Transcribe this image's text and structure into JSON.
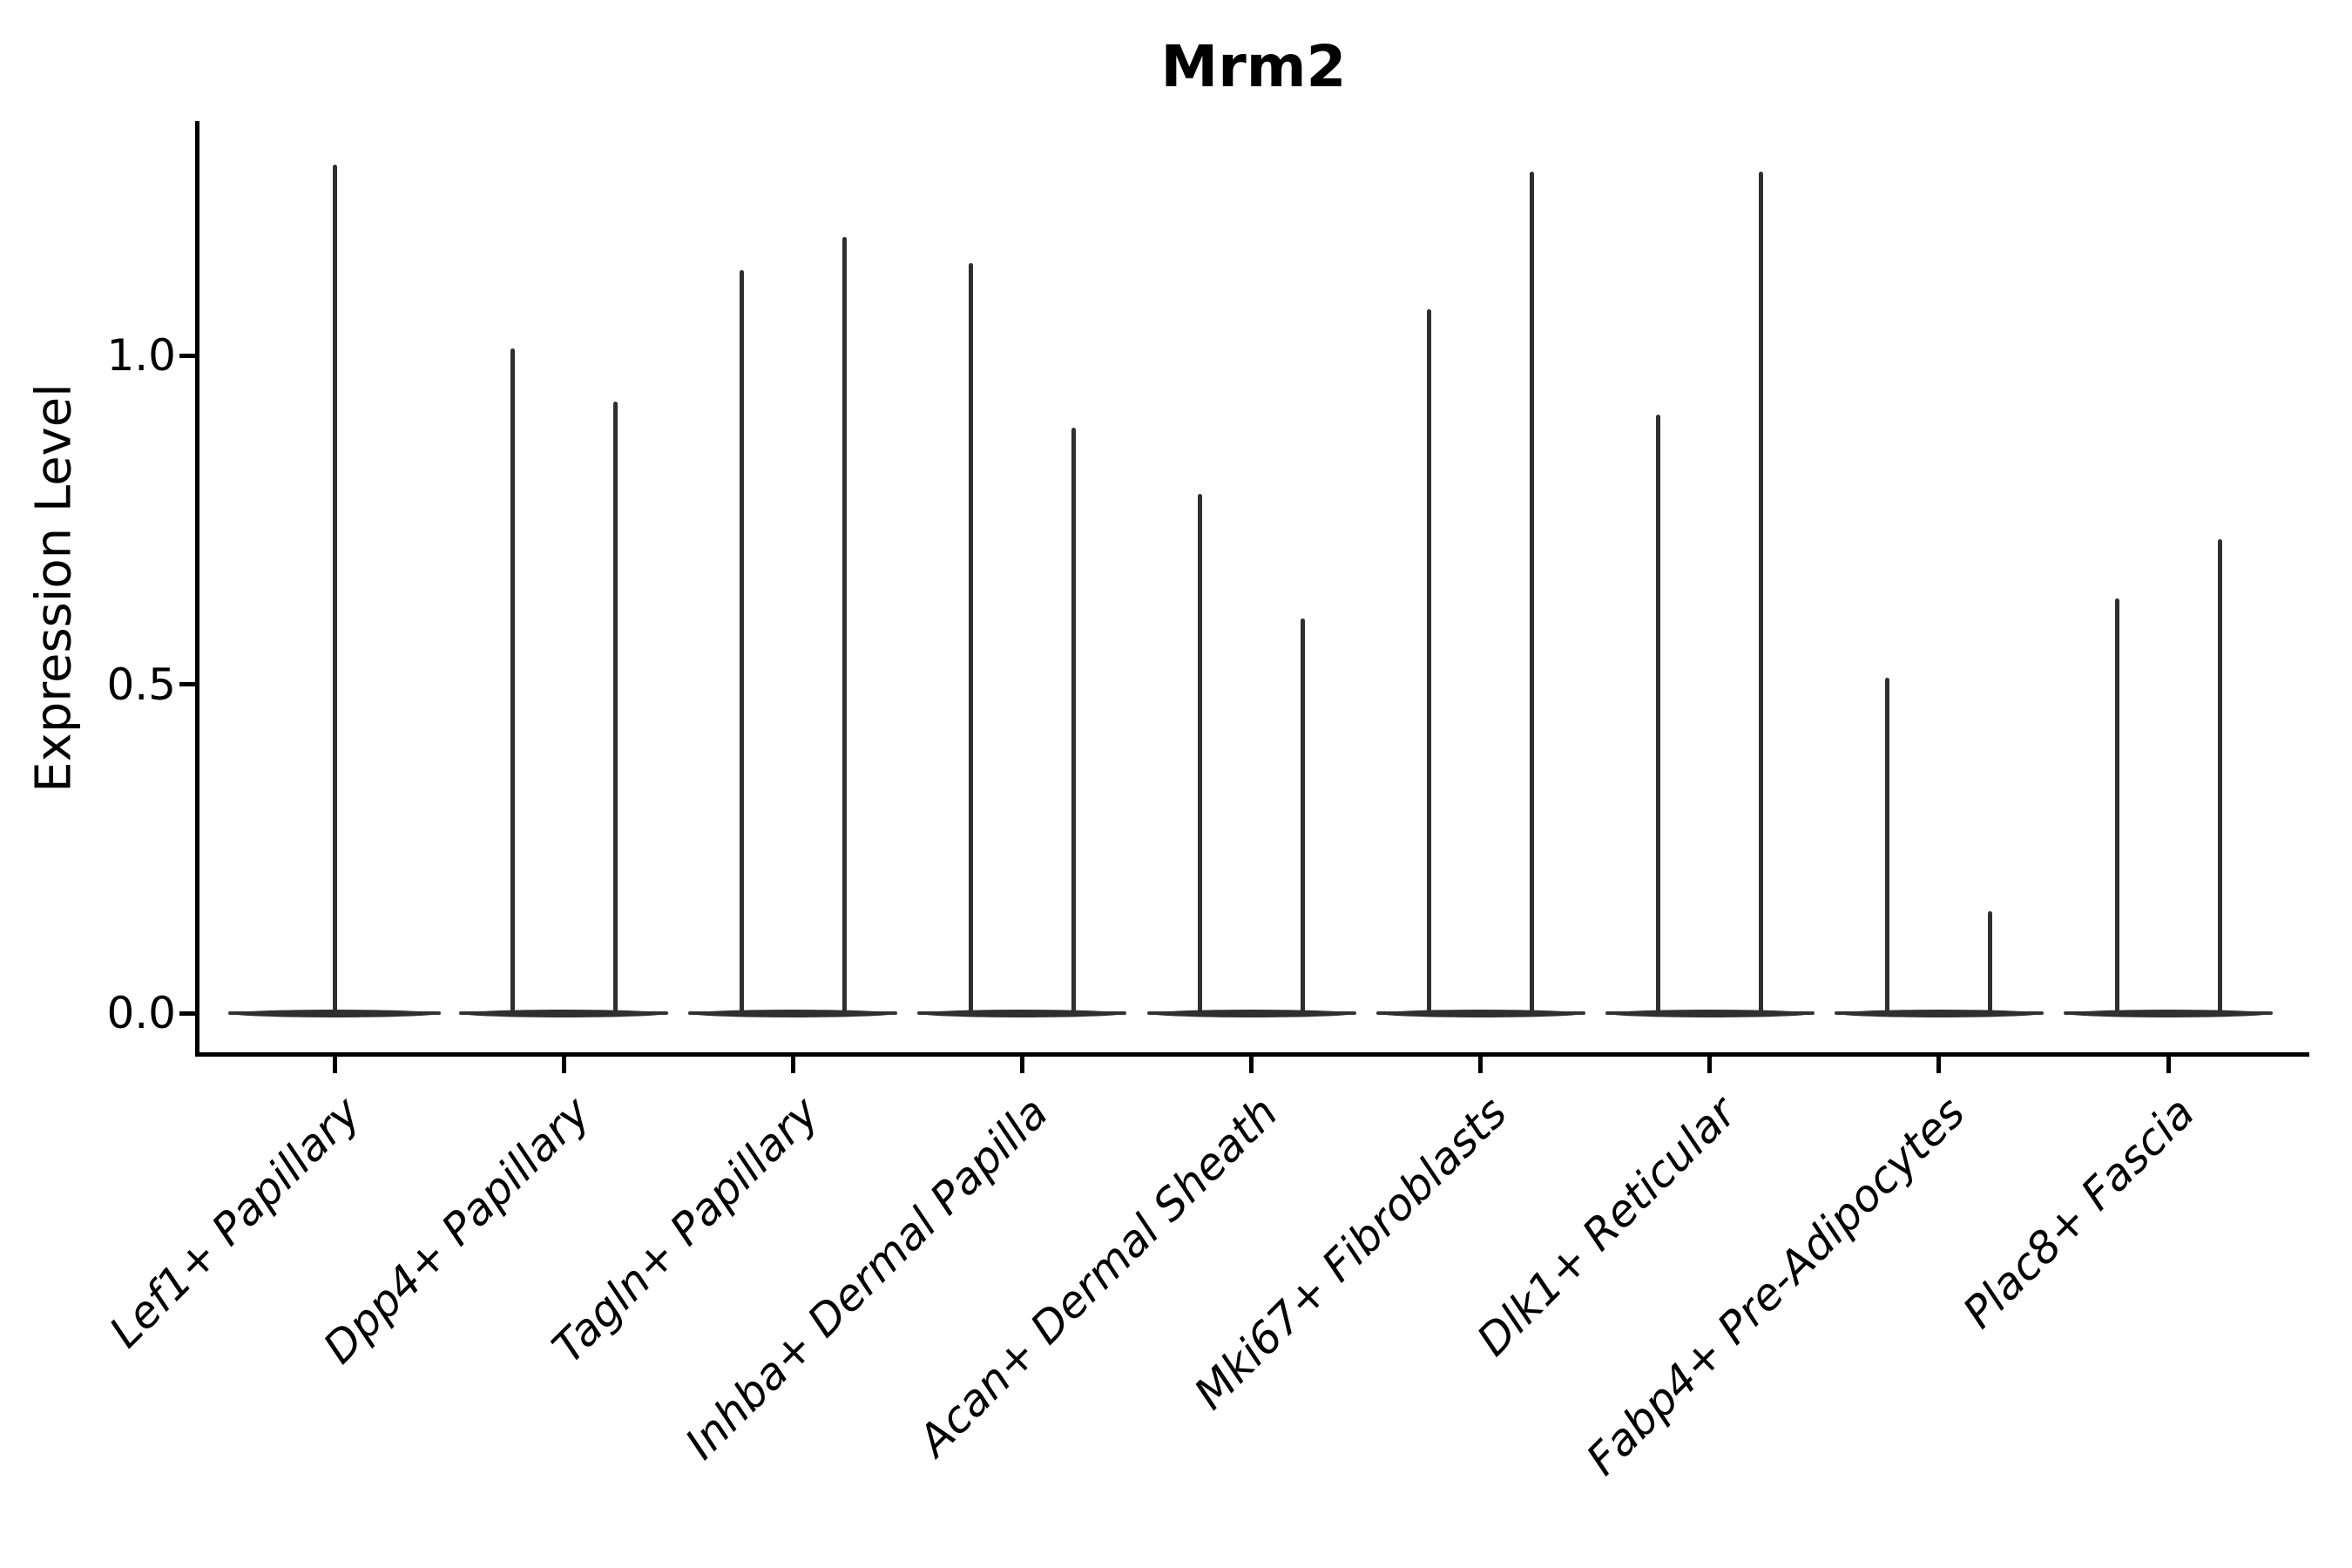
{
  "title": "Mrm2",
  "ylabel": "Expression Level",
  "colors": {
    "violin_stroke": "#2f2f2f",
    "axis": "#000000",
    "background": "#ffffff"
  },
  "chart_data": {
    "type": "violin",
    "title": "Mrm2",
    "xlabel": "",
    "ylabel": "Expression Level",
    "ylim": [
      -0.06,
      1.35
    ],
    "yticks": [
      0.0,
      0.5,
      1.0
    ],
    "ytick_labels": [
      "0.0",
      "0.5",
      "1.0"
    ],
    "grid": false,
    "legend": "none",
    "description": "Each violin is a flat horizontal lens at expression 0 (most cells zero) with a thin vertical spike reaching the maximum expression value. The first category has a single centered violin; all other categories contain two side-by-side violins.",
    "categories": [
      {
        "label": "Lef1+ Papillary",
        "violin_maxes": [
          1.29
        ]
      },
      {
        "label": "Dpp4+ Papillary",
        "violin_maxes": [
          1.01,
          0.93
        ]
      },
      {
        "label": "Tagln+ Papillary",
        "violin_maxes": [
          1.13,
          1.18
        ]
      },
      {
        "label": "Inhba+ Dermal Papilla",
        "violin_maxes": [
          1.14,
          0.89
        ]
      },
      {
        "label": "Acan+ Dermal Sheath",
        "violin_maxes": [
          0.79,
          0.6
        ]
      },
      {
        "label": "Mki67+ Fibroblasts",
        "violin_maxes": [
          1.07,
          1.28
        ]
      },
      {
        "label": "Dlk1+ Reticular",
        "violin_maxes": [
          0.91,
          1.28
        ]
      },
      {
        "label": "Fabp4+ Pre-Adipocytes",
        "violin_maxes": [
          0.51,
          0.155
        ]
      },
      {
        "label": "Plac8+ Fascia",
        "violin_maxes": [
          0.63,
          0.72
        ]
      }
    ]
  }
}
